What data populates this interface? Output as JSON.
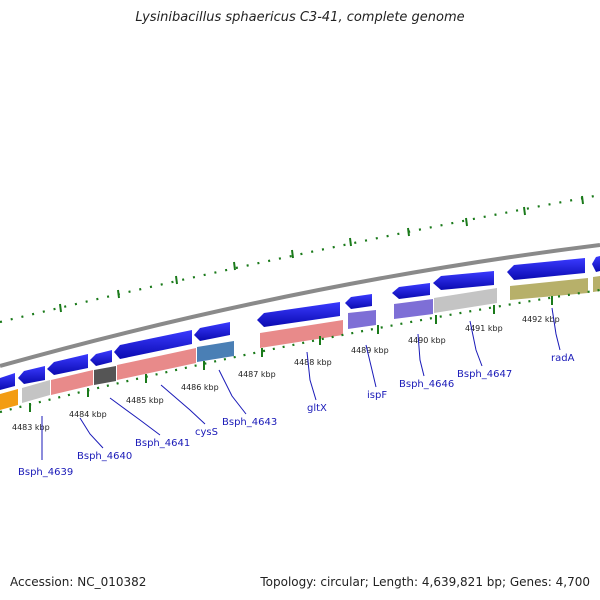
{
  "title": "Lysinibacillus sphaericus C3-41, complete genome",
  "accession": "Accession: NC_010382",
  "topology": "Topology: circular; Length: 4,639,821 bp; Genes: 4,700",
  "kbp_labels": [
    "4483 kbp",
    "4484 kbp",
    "4485 kbp",
    "4486 kbp",
    "4487 kbp",
    "4488 kbp",
    "4489 kbp",
    "4490 kbp",
    "4491 kbp",
    "4492 kbp"
  ],
  "gene_labels": [
    "Bsph_4639",
    "Bsph_4640",
    "Bsph_4641",
    "cysS",
    "Bsph_4643",
    "gltX",
    "ispF",
    "Bsph_4646",
    "Bsph_4647",
    "radA"
  ],
  "colors": {
    "backbone": "#8a8a8a",
    "cds_forward": "#1414e6",
    "gc_skew": "#1a7a1a",
    "orange": "#f39c12",
    "pink": "#e88a8a",
    "gray": "#b4b4b4",
    "darkgray": "#555555",
    "steelblue": "#4a7fb5",
    "purple": "#7e6fd6",
    "olive": "#b7b06a"
  }
}
